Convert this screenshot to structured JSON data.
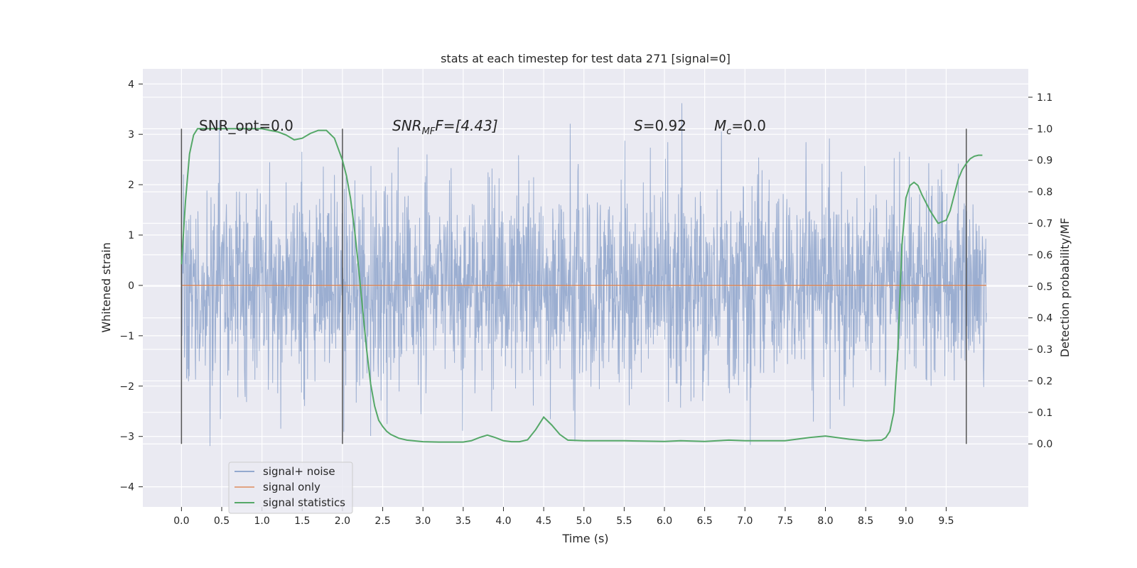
{
  "chart_data": {
    "type": "line",
    "title": "stats at each timestep for test data 271 [signal=0]",
    "xlabel": "Time (s)",
    "ylabel": "Whitened strain",
    "ylabel_right": "Detection probability/MF",
    "xlim": [
      -0.48,
      10.52
    ],
    "ylim": [
      -4.4,
      4.3
    ],
    "ylim_right": [
      -0.2,
      1.19
    ],
    "x_ticks": [
      "0.0",
      "0.5",
      "1.0",
      "1.5",
      "2.0",
      "2.5",
      "3.0",
      "3.5",
      "4.0",
      "4.5",
      "5.0",
      "5.5",
      "6.0",
      "6.5",
      "7.0",
      "7.5",
      "8.0",
      "8.5",
      "9.0",
      "9.5"
    ],
    "y_ticks": [
      "4",
      "3",
      "2",
      "1",
      "0",
      "−1",
      "−2",
      "−3",
      "−4"
    ],
    "y_right_ticks": [
      "1.1",
      "1.0",
      "0.9",
      "0.8",
      "0.7",
      "0.6",
      "0.5",
      "0.4",
      "0.3",
      "0.2",
      "0.1",
      "0.0"
    ],
    "grid": true,
    "background": "#eaeaf2",
    "annotations": {
      "snr_opt": "SNR_opt=0.0",
      "snr_mf_main": "SNR",
      "snr_mf_sub": "MF",
      "snr_mf_tail": "F=[4.43]",
      "s_main": "S",
      "s_tail": "=0.92",
      "mc_main": "M",
      "mc_sub": "c",
      "mc_tail": "=0.0"
    },
    "legend": {
      "placement": "lower-left",
      "entries": [
        "signal+ noise",
        "signal only",
        "signal statistics"
      ]
    },
    "colors": {
      "noise": "#4c72b0",
      "signal": "#dd8452",
      "stats": "#55a868",
      "vlines": "#555555"
    },
    "vertical_lines_x": [
      0.0,
      2.0,
      9.75
    ],
    "noise_amplitude": {
      "typical_max": 2.3,
      "typical_min": -2.4,
      "peak_max": 3.95,
      "peak_min": -3.6
    },
    "series": [
      {
        "name": "signal statistics",
        "x": [
          0.0,
          0.05,
          0.1,
          0.15,
          0.2,
          0.3,
          0.4,
          0.5,
          0.6,
          0.7,
          0.8,
          0.9,
          1.0,
          1.1,
          1.2,
          1.3,
          1.4,
          1.5,
          1.6,
          1.7,
          1.8,
          1.9,
          2.0,
          2.05,
          2.1,
          2.15,
          2.2,
          2.25,
          2.3,
          2.35,
          2.4,
          2.45,
          2.5,
          2.55,
          2.6,
          2.7,
          2.8,
          3.0,
          3.2,
          3.4,
          3.5,
          3.6,
          3.7,
          3.8,
          3.9,
          4.0,
          4.1,
          4.2,
          4.3,
          4.4,
          4.5,
          4.6,
          4.7,
          4.8,
          5.0,
          5.5,
          6.0,
          6.2,
          6.5,
          6.8,
          7.0,
          7.5,
          7.8,
          8.0,
          8.3,
          8.5,
          8.7,
          8.75,
          8.8,
          8.85,
          8.9,
          8.95,
          9.0,
          9.05,
          9.1,
          9.15,
          9.2,
          9.3,
          9.4,
          9.5,
          9.55,
          9.6,
          9.65,
          9.7,
          9.75,
          9.8,
          9.85,
          9.9,
          9.95
        ],
        "values": [
          0.57,
          0.77,
          0.92,
          0.98,
          1.0,
          1.0,
          1.0,
          1.0,
          1.0,
          1.0,
          1.0,
          1.0,
          1.0,
          0.995,
          0.99,
          0.98,
          0.965,
          0.97,
          0.985,
          0.995,
          0.995,
          0.97,
          0.9,
          0.85,
          0.78,
          0.68,
          0.56,
          0.43,
          0.3,
          0.19,
          0.12,
          0.075,
          0.055,
          0.04,
          0.03,
          0.018,
          0.012,
          0.007,
          0.006,
          0.006,
          0.006,
          0.01,
          0.02,
          0.028,
          0.02,
          0.01,
          0.007,
          0.007,
          0.013,
          0.045,
          0.085,
          0.06,
          0.03,
          0.012,
          0.01,
          0.01,
          0.008,
          0.01,
          0.008,
          0.012,
          0.01,
          0.01,
          0.02,
          0.025,
          0.015,
          0.01,
          0.012,
          0.02,
          0.04,
          0.1,
          0.3,
          0.63,
          0.78,
          0.82,
          0.83,
          0.82,
          0.79,
          0.74,
          0.7,
          0.71,
          0.74,
          0.79,
          0.84,
          0.87,
          0.89,
          0.905,
          0.913,
          0.916,
          0.916
        ]
      },
      {
        "name": "signal only",
        "x": [
          0.0,
          10.0
        ],
        "values": [
          0.0,
          0.0
        ]
      }
    ]
  }
}
